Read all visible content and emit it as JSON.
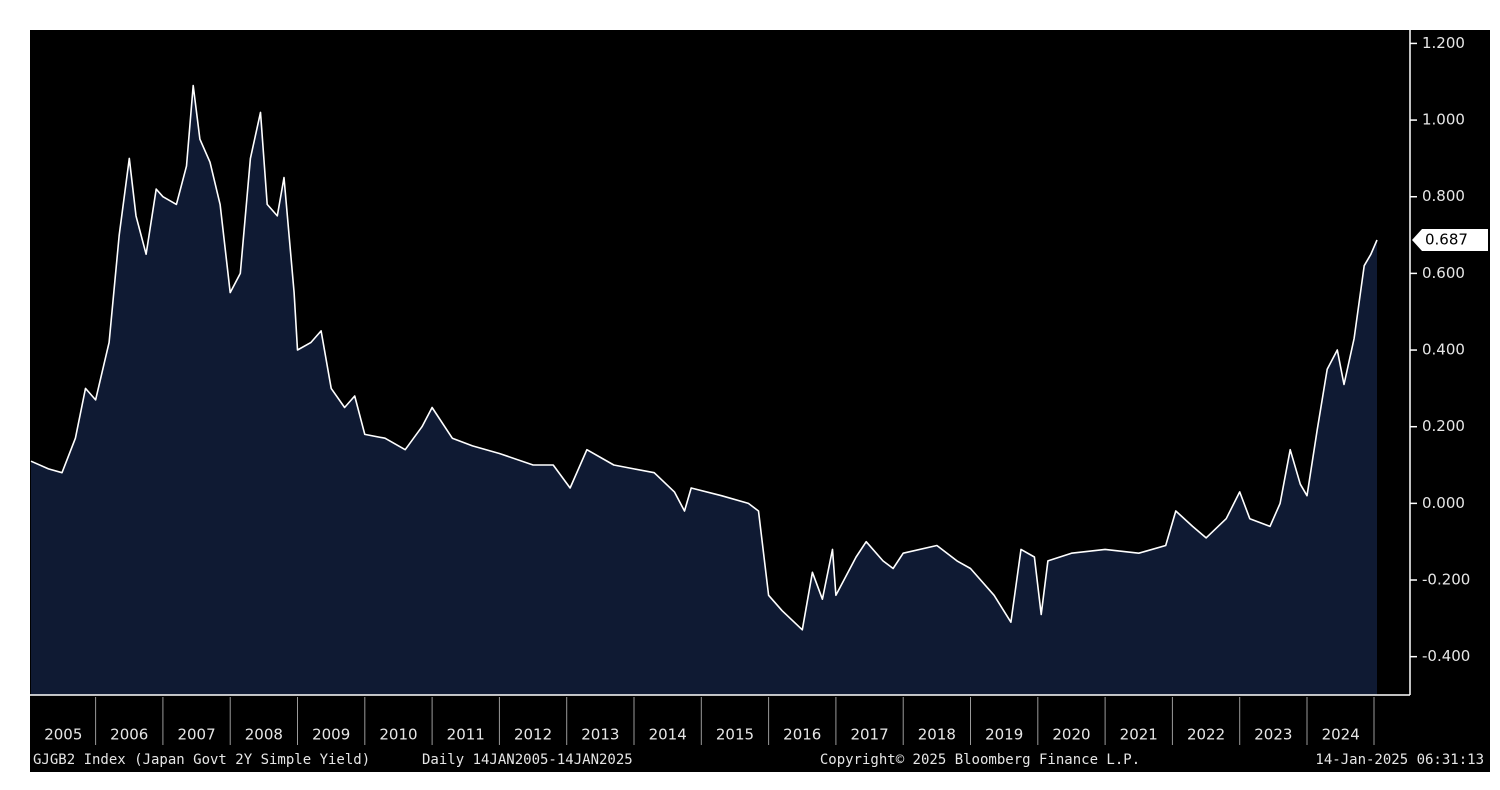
{
  "chart_data": {
    "type": "area",
    "title": "GJGB2 Index (Japan Govt 2Y Simple Yield)",
    "subtitle": "Daily 14JAN2005-14JAN2025",
    "source": "Copyright© 2025 Bloomberg Finance L.P.",
    "timestamp": "14-Jan-2025 06:31:13",
    "x": [
      2005.04,
      2005.3,
      2005.5,
      2005.7,
      2005.85,
      2006.0,
      2006.2,
      2006.35,
      2006.5,
      2006.6,
      2006.75,
      2006.9,
      2007.0,
      2007.2,
      2007.35,
      2007.45,
      2007.55,
      2007.7,
      2007.85,
      2008.0,
      2008.15,
      2008.3,
      2008.45,
      2008.55,
      2008.7,
      2008.8,
      2008.95,
      2009.0,
      2009.2,
      2009.35,
      2009.5,
      2009.7,
      2009.85,
      2010.0,
      2010.3,
      2010.6,
      2010.85,
      2011.0,
      2011.3,
      2011.6,
      2012.0,
      2012.5,
      2012.8,
      2013.05,
      2013.3,
      2013.7,
      2014.0,
      2014.3,
      2014.6,
      2014.75,
      2014.85,
      2015.3,
      2015.7,
      2015.85,
      2016.0,
      2016.2,
      2016.5,
      2016.65,
      2016.8,
      2016.95,
      2017.0,
      2017.3,
      2017.45,
      2017.7,
      2017.85,
      2018.0,
      2018.5,
      2018.8,
      2019.0,
      2019.35,
      2019.6,
      2019.75,
      2019.95,
      2020.05,
      2020.15,
      2020.5,
      2021.0,
      2021.5,
      2021.9,
      2022.05,
      2022.3,
      2022.5,
      2022.8,
      2023.0,
      2023.15,
      2023.45,
      2023.6,
      2023.75,
      2023.9,
      2024.0,
      2024.15,
      2024.3,
      2024.45,
      2024.55,
      2024.7,
      2024.85,
      2024.95,
      2025.04
    ],
    "series": [
      {
        "name": "GJGB2 Index",
        "color": "#ffffff",
        "fill": "#0f1a33",
        "values": [
          0.11,
          0.09,
          0.08,
          0.17,
          0.3,
          0.27,
          0.42,
          0.7,
          0.9,
          0.75,
          0.65,
          0.82,
          0.8,
          0.78,
          0.88,
          1.09,
          0.95,
          0.89,
          0.78,
          0.55,
          0.6,
          0.9,
          1.02,
          0.78,
          0.75,
          0.85,
          0.55,
          0.4,
          0.42,
          0.45,
          0.3,
          0.25,
          0.28,
          0.18,
          0.17,
          0.14,
          0.2,
          0.25,
          0.17,
          0.15,
          0.13,
          0.1,
          0.1,
          0.04,
          0.14,
          0.1,
          0.09,
          0.08,
          0.03,
          -0.02,
          0.04,
          0.02,
          0.0,
          -0.02,
          -0.24,
          -0.28,
          -0.33,
          -0.18,
          -0.25,
          -0.12,
          -0.24,
          -0.14,
          -0.1,
          -0.15,
          -0.17,
          -0.13,
          -0.11,
          -0.15,
          -0.17,
          -0.24,
          -0.31,
          -0.12,
          -0.14,
          -0.29,
          -0.15,
          -0.13,
          -0.12,
          -0.13,
          -0.11,
          -0.02,
          -0.06,
          -0.09,
          -0.04,
          0.03,
          -0.04,
          -0.06,
          0.0,
          0.14,
          0.05,
          0.02,
          0.19,
          0.35,
          0.4,
          0.31,
          0.43,
          0.62,
          0.65,
          0.687
        ]
      }
    ],
    "xlim": [
      2005.04,
      2025.04
    ],
    "xticks": [
      2005,
      2006,
      2007,
      2008,
      2009,
      2010,
      2011,
      2012,
      2013,
      2014,
      2015,
      2016,
      2017,
      2018,
      2019,
      2020,
      2021,
      2022,
      2023,
      2024
    ],
    "ylim": [
      -0.5,
      1.235
    ],
    "yticks": [
      {
        "value": -0.4,
        "label": "-0.400"
      },
      {
        "value": -0.2,
        "label": "-0.200"
      },
      {
        "value": 0,
        "label": "0.000"
      },
      {
        "value": 0.2,
        "label": "0.200"
      },
      {
        "value": 0.4,
        "label": "0.400"
      },
      {
        "value": 0.6,
        "label": "0.600"
      },
      {
        "value": 0.8,
        "label": "0.800"
      },
      {
        "value": 1.0,
        "label": "1.000"
      },
      {
        "value": 1.2,
        "label": "1.200"
      }
    ],
    "y_axis_side": "right",
    "last_value_label": true
  }
}
